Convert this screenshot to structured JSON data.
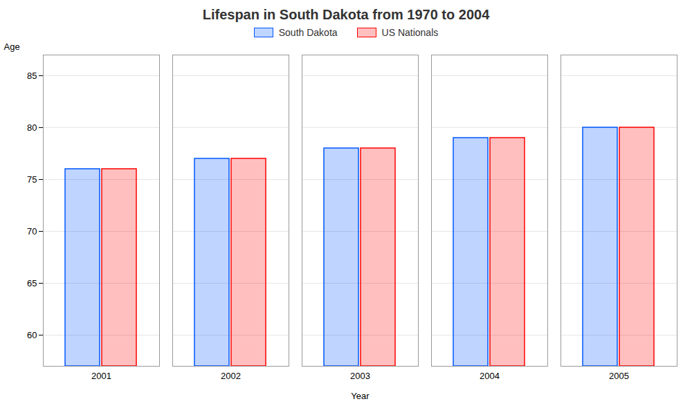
{
  "chart_data": {
    "type": "bar",
    "title": "Lifespan in South Dakota from 1970 to 2004",
    "x_label": "Year",
    "y_label": "Age",
    "categories": [
      2001,
      2002,
      2003,
      2004,
      2005
    ],
    "series": [
      {
        "name": "South Dakota",
        "color": "#0055ff",
        "values": [
          76,
          77,
          78,
          79,
          80
        ]
      },
      {
        "name": "US Nationals",
        "color": "#ff0000",
        "values": [
          76,
          77,
          78,
          79,
          80
        ]
      }
    ],
    "ylim": [
      57,
      87
    ],
    "yticks": [
      60,
      65,
      70,
      75,
      80,
      85
    ],
    "grid": true,
    "legend": "top"
  }
}
